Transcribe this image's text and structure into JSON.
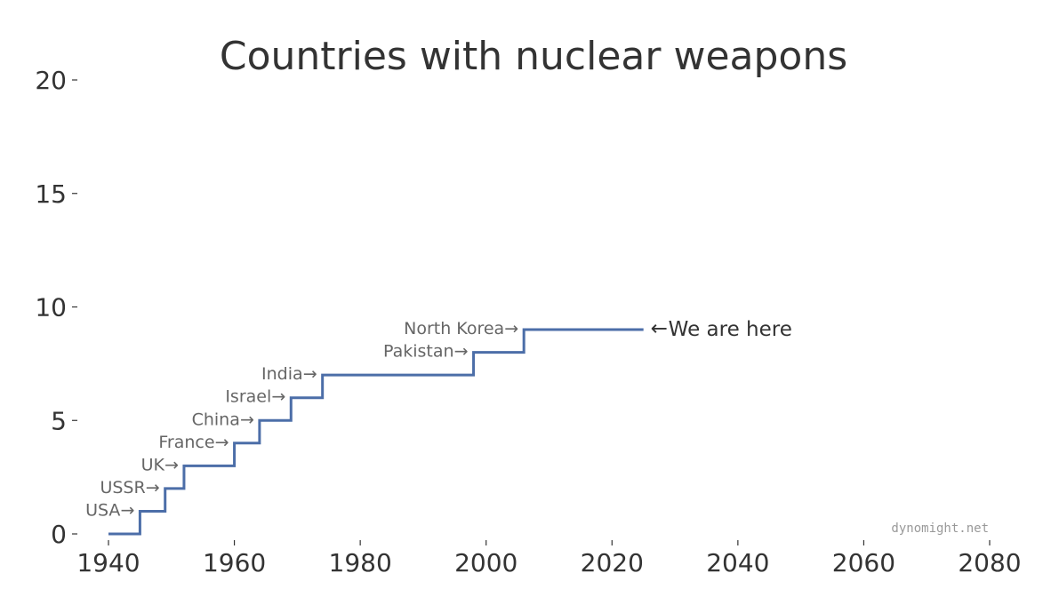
{
  "chart_data": {
    "type": "line",
    "title": "Countries with nuclear weapons",
    "xlabel": "",
    "ylabel": "",
    "xlim": [
      1938,
      2082
    ],
    "ylim": [
      0,
      20
    ],
    "x_ticks": [
      1940,
      1960,
      1980,
      2000,
      2020,
      2040,
      2060,
      2080
    ],
    "y_ticks": [
      0,
      5,
      10,
      15,
      20
    ],
    "grid": false,
    "step": {
      "start_year": 1940,
      "end_year": 2025,
      "events": [
        {
          "year": 1945,
          "label": "USA"
        },
        {
          "year": 1949,
          "label": "USSR"
        },
        {
          "year": 1952,
          "label": "UK"
        },
        {
          "year": 1960,
          "label": "France"
        },
        {
          "year": 1964,
          "label": "China"
        },
        {
          "year": 1969,
          "label": "Israel"
        },
        {
          "year": 1974,
          "label": "India"
        },
        {
          "year": 1998,
          "label": "Pakistan"
        },
        {
          "year": 2006,
          "label": "North Korea"
        }
      ]
    },
    "current_marker": "We are here",
    "credit": "dynomight.net",
    "line_color": "#4c6ea8"
  }
}
